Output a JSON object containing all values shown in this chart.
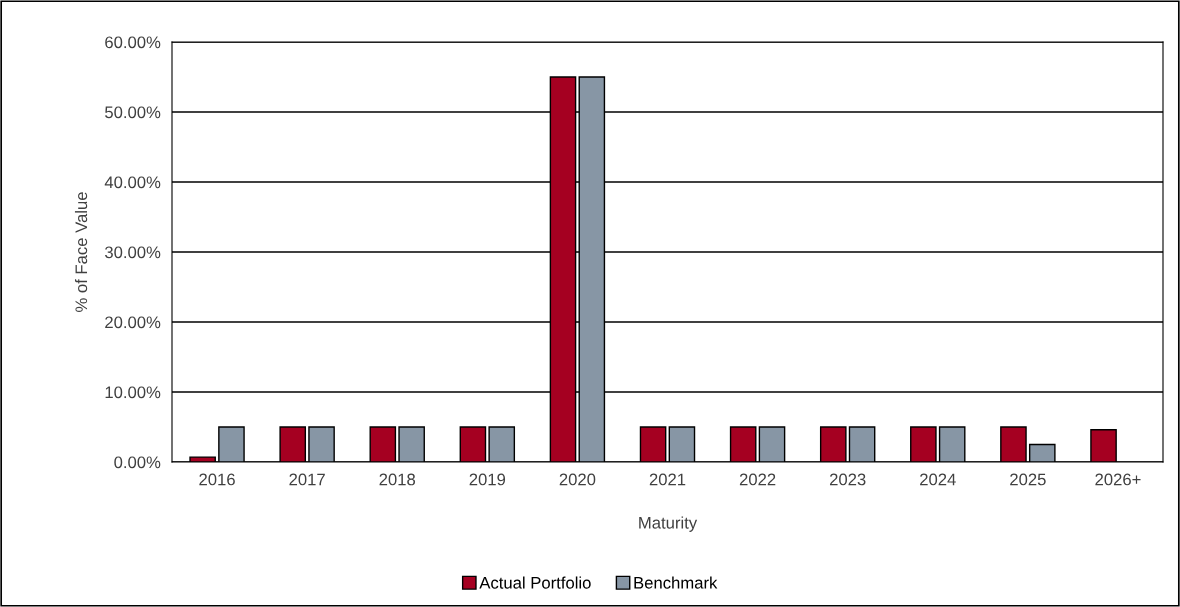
{
  "chart_data": {
    "type": "bar",
    "xlabel": "Maturity",
    "ylabel": "% of Face Value",
    "categories": [
      "2016",
      "2017",
      "2018",
      "2019",
      "2020",
      "2021",
      "2022",
      "2023",
      "2024",
      "2025",
      "2026+"
    ],
    "series": [
      {
        "name": "Actual Portfolio",
        "color": "#a50021",
        "values": [
          0.7,
          5,
          5,
          5,
          55,
          5,
          5,
          5,
          5,
          5,
          4.6
        ]
      },
      {
        "name": "Benchmark",
        "color": "#8796a5",
        "values": [
          5,
          5,
          5,
          5,
          55,
          5,
          5,
          5,
          5,
          2.5,
          null
        ]
      }
    ],
    "ylim": [
      0,
      60
    ],
    "yticks": [
      {
        "value": 0,
        "label": "0.00%"
      },
      {
        "value": 10,
        "label": "10.00%"
      },
      {
        "value": 20,
        "label": "20.00%"
      },
      {
        "value": 30,
        "label": "30.00%"
      },
      {
        "value": 40,
        "label": "40.00%"
      },
      {
        "value": 50,
        "label": "50.00%"
      },
      {
        "value": 60,
        "label": "60.00%"
      }
    ],
    "grid": "y",
    "legend": "bottom"
  }
}
